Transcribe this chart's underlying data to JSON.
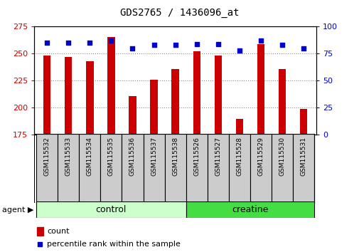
{
  "title": "GDS2765 / 1436096_at",
  "categories": [
    "GSM115532",
    "GSM115533",
    "GSM115534",
    "GSM115535",
    "GSM115536",
    "GSM115537",
    "GSM115538",
    "GSM115526",
    "GSM115527",
    "GSM115528",
    "GSM115529",
    "GSM115530",
    "GSM115531"
  ],
  "counts": [
    248,
    247,
    243,
    265,
    211,
    226,
    236,
    252,
    248,
    190,
    259,
    236,
    199
  ],
  "percentiles": [
    85,
    85,
    85,
    87,
    80,
    83,
    83,
    84,
    84,
    78,
    87,
    83,
    80
  ],
  "bar_color": "#cc0000",
  "dot_color": "#0000cc",
  "ylim_left": [
    175,
    275
  ],
  "ylim_right": [
    0,
    100
  ],
  "yticks_left": [
    175,
    200,
    225,
    250,
    275
  ],
  "yticks_right": [
    0,
    25,
    50,
    75,
    100
  ],
  "control_color": "#ccffcc",
  "creatine_color": "#44dd44",
  "group_label_left": "agent",
  "legend_count_label": "count",
  "legend_percentile_label": "percentile rank within the sample",
  "bar_color_left": "#cc0000",
  "tick_color_right": "#0000cc",
  "grid_color": "#888888",
  "xtick_box_color": "#cccccc"
}
